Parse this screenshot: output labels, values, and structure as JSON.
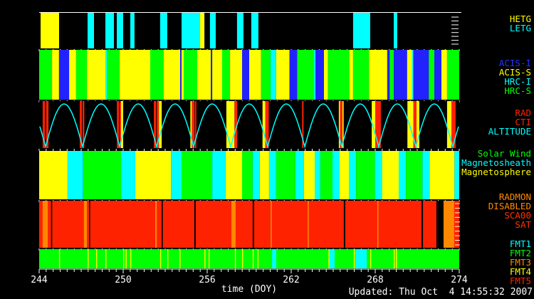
{
  "palette": {
    "yellow": "#ffff00",
    "cyan": "#00ffff",
    "green": "#00ff00",
    "blue": "#2222ff",
    "red": "#ff2200",
    "orange": "#ff8800",
    "black": "#000000",
    "white": "#ffffff"
  },
  "axis": {
    "xlabel": "time (DOY)",
    "x_min": 244,
    "x_max": 274,
    "major_ticks": [
      244,
      250,
      256,
      262,
      268,
      274
    ],
    "minor_step": 0.5
  },
  "footer": {
    "updated": "Updated: Thu Oct  4 14:55:32 2007"
  },
  "chart_data": {
    "type": "timeline-bands",
    "x_range": [
      244,
      274
    ],
    "x_unit": "DOY",
    "bands": [
      {
        "id": "gratings",
        "background": "black",
        "labels": [
          {
            "text": "HETG",
            "color": "#ffff00"
          },
          {
            "text": "LETG",
            "color": "#00ffff"
          }
        ],
        "segments": [
          [
            244.1,
            245.42,
            "yellow"
          ],
          [
            247.46,
            247.92,
            "cyan"
          ],
          [
            248.73,
            249.34,
            "cyan"
          ],
          [
            249.54,
            250.0,
            "cyan"
          ],
          [
            250.51,
            250.81,
            "cyan"
          ],
          [
            252.64,
            253.15,
            "cyan"
          ],
          [
            254.17,
            255.49,
            "cyan"
          ],
          [
            255.49,
            255.8,
            "yellow"
          ],
          [
            256.2,
            256.61,
            "cyan"
          ],
          [
            258.13,
            258.59,
            "cyan"
          ],
          [
            259.15,
            259.66,
            "cyan"
          ],
          [
            266.42,
            267.64,
            "cyan"
          ],
          [
            269.32,
            269.57,
            "cyan"
          ]
        ]
      },
      {
        "id": "instruments",
        "background": "black",
        "labels": [
          {
            "text": "ACIS-I",
            "color": "#2233ff"
          },
          {
            "text": "ACIS-S",
            "color": "#ffff00"
          },
          {
            "text": "HRC-I",
            "color": "#00ffff"
          },
          {
            "text": "HRC-S",
            "color": "#00ff00"
          }
        ],
        "segments": [
          [
            244.0,
            244.92,
            "green"
          ],
          [
            244.92,
            245.42,
            "yellow"
          ],
          [
            245.42,
            246.14,
            "blue"
          ],
          [
            246.14,
            246.64,
            "yellow"
          ],
          [
            246.64,
            247.41,
            "green"
          ],
          [
            247.41,
            248.73,
            "yellow"
          ],
          [
            248.73,
            248.83,
            "cyan"
          ],
          [
            248.83,
            249.75,
            "green"
          ],
          [
            249.75,
            251.93,
            "yellow"
          ],
          [
            251.93,
            252.9,
            "green"
          ],
          [
            252.9,
            254.07,
            "yellow"
          ],
          [
            254.07,
            254.17,
            "blue"
          ],
          [
            254.17,
            254.32,
            "yellow"
          ],
          [
            254.32,
            255.29,
            "green"
          ],
          [
            255.29,
            256.26,
            "yellow"
          ],
          [
            256.26,
            256.36,
            "blue"
          ],
          [
            256.36,
            257.07,
            "yellow"
          ],
          [
            257.07,
            257.63,
            "green"
          ],
          [
            257.63,
            258.49,
            "yellow"
          ],
          [
            258.49,
            259.0,
            "blue"
          ],
          [
            259.0,
            259.85,
            "yellow"
          ],
          [
            259.85,
            260.53,
            "green"
          ],
          [
            260.53,
            260.92,
            "cyan"
          ],
          [
            260.92,
            261.88,
            "yellow"
          ],
          [
            261.88,
            262.42,
            "blue"
          ],
          [
            262.42,
            263.63,
            "green"
          ],
          [
            263.63,
            263.73,
            "cyan"
          ],
          [
            263.73,
            264.34,
            "blue"
          ],
          [
            264.34,
            264.63,
            "yellow"
          ],
          [
            264.63,
            266.15,
            "green"
          ],
          [
            266.15,
            266.42,
            "yellow"
          ],
          [
            266.42,
            267.56,
            "green"
          ],
          [
            267.56,
            268.86,
            "yellow"
          ],
          [
            268.86,
            269.03,
            "blue"
          ],
          [
            269.03,
            269.33,
            "green"
          ],
          [
            269.33,
            270.28,
            "blue"
          ],
          [
            270.28,
            270.64,
            "yellow"
          ],
          [
            270.64,
            270.72,
            "cyan"
          ],
          [
            270.72,
            271.83,
            "blue"
          ],
          [
            271.83,
            272.22,
            "green"
          ],
          [
            272.22,
            272.73,
            "blue"
          ],
          [
            272.73,
            273.13,
            "yellow"
          ],
          [
            273.13,
            274.0,
            "green"
          ]
        ]
      },
      {
        "id": "orbit",
        "background": "black",
        "labels": [
          {
            "text": "RAD",
            "color": "#ff2200"
          },
          {
            "text": "CTI",
            "color": "#ff2200"
          },
          {
            "text": "ALTITUDE",
            "color": "#00ffff"
          }
        ],
        "curve": {
          "name": "altitude",
          "color": "#00ffff",
          "perigees": [
            244.46,
            247.1,
            249.75,
            252.39,
            255.03,
            257.68,
            260.32,
            262.97,
            265.61,
            268.25,
            270.9,
            273.54
          ]
        },
        "segments": [
          [
            244.25,
            244.42,
            "red"
          ],
          [
            244.5,
            244.67,
            "red"
          ],
          [
            246.9,
            247.05,
            "red"
          ],
          [
            247.1,
            247.22,
            "red"
          ],
          [
            249.55,
            249.7,
            "red"
          ],
          [
            249.75,
            249.85,
            "red"
          ],
          [
            249.85,
            250.0,
            "yellow"
          ],
          [
            252.19,
            252.35,
            "red"
          ],
          [
            252.4,
            252.55,
            "red"
          ],
          [
            252.55,
            252.75,
            "yellow"
          ],
          [
            254.8,
            254.9,
            "yellow"
          ],
          [
            254.9,
            255.1,
            "red"
          ],
          [
            255.14,
            255.22,
            "red"
          ],
          [
            257.37,
            257.95,
            "yellow"
          ],
          [
            257.95,
            258.15,
            "red"
          ],
          [
            259.95,
            260.15,
            "yellow"
          ],
          [
            260.15,
            260.4,
            "red"
          ],
          [
            262.78,
            262.88,
            "red"
          ],
          [
            265.4,
            265.48,
            "yellow"
          ],
          [
            265.48,
            265.66,
            "red"
          ],
          [
            265.66,
            265.74,
            "yellow"
          ],
          [
            267.75,
            268.0,
            "yellow"
          ],
          [
            268.0,
            268.4,
            "red"
          ],
          [
            270.3,
            270.72,
            "yellow"
          ],
          [
            270.72,
            270.95,
            "red"
          ],
          [
            270.95,
            271.15,
            "yellow"
          ],
          [
            273.13,
            273.44,
            "yellow"
          ],
          [
            273.44,
            273.74,
            "red"
          ]
        ]
      },
      {
        "id": "space-weather",
        "background": "black",
        "labels": [
          {
            "text": "Solar Wind",
            "color": "#00ff00"
          },
          {
            "text": "Magnetosheath",
            "color": "#00ffff"
          },
          {
            "text": "Magnetosphere",
            "color": "#ffff00"
          }
        ],
        "segments": [
          [
            244.0,
            246.03,
            "yellow"
          ],
          [
            246.03,
            247.14,
            "cyan"
          ],
          [
            247.14,
            249.85,
            "green"
          ],
          [
            249.85,
            250.86,
            "cyan"
          ],
          [
            250.86,
            253.41,
            "yellow"
          ],
          [
            253.41,
            254.17,
            "cyan"
          ],
          [
            254.17,
            256.36,
            "green"
          ],
          [
            256.36,
            257.31,
            "cyan"
          ],
          [
            257.31,
            258.49,
            "yellow"
          ],
          [
            258.49,
            259.25,
            "green"
          ],
          [
            259.25,
            259.76,
            "cyan"
          ],
          [
            259.76,
            260.42,
            "yellow"
          ],
          [
            260.42,
            260.93,
            "cyan"
          ],
          [
            260.93,
            262.3,
            "green"
          ],
          [
            262.3,
            262.91,
            "cyan"
          ],
          [
            262.91,
            263.68,
            "yellow"
          ],
          [
            263.68,
            264.08,
            "cyan"
          ],
          [
            264.08,
            264.95,
            "green"
          ],
          [
            264.95,
            265.46,
            "cyan"
          ],
          [
            265.46,
            266.12,
            "yellow"
          ],
          [
            266.12,
            266.63,
            "cyan"
          ],
          [
            266.63,
            267.98,
            "green"
          ],
          [
            267.98,
            268.49,
            "cyan"
          ],
          [
            268.49,
            269.68,
            "yellow"
          ],
          [
            269.68,
            270.19,
            "cyan"
          ],
          [
            270.19,
            271.37,
            "green"
          ],
          [
            271.37,
            271.88,
            "cyan"
          ],
          [
            271.88,
            273.66,
            "yellow"
          ],
          [
            273.66,
            274.0,
            "cyan"
          ]
        ]
      },
      {
        "id": "radmon",
        "background": "red",
        "labels": [
          {
            "text": "RADMON",
            "color": "#ff8800"
          },
          {
            "text": "DISABLED",
            "color": "#ff8800"
          },
          {
            "text": "SCA00",
            "color": "#ff3300"
          },
          {
            "text": "SAT",
            "color": "#ff3300"
          }
        ],
        "segments": [
          [
            244.25,
            244.61,
            "orange"
          ],
          [
            244.85,
            244.93,
            "black"
          ],
          [
            247.2,
            247.41,
            "orange"
          ],
          [
            247.56,
            247.64,
            "black"
          ],
          [
            252.29,
            252.4,
            "orange"
          ],
          [
            252.75,
            252.83,
            "black"
          ],
          [
            255.08,
            255.18,
            "black"
          ],
          [
            257.73,
            258.03,
            "orange"
          ],
          [
            259.25,
            259.35,
            "black"
          ],
          [
            260.53,
            260.61,
            "orange"
          ],
          [
            263.17,
            263.25,
            "orange"
          ],
          [
            265.76,
            265.86,
            "black"
          ],
          [
            268.15,
            268.23,
            "orange"
          ],
          [
            271.31,
            271.41,
            "black"
          ],
          [
            272.37,
            272.88,
            "black"
          ],
          [
            272.88,
            273.64,
            "orange"
          ]
        ]
      },
      {
        "id": "telemetry-format",
        "background": "green",
        "labels": [
          {
            "text": "FMT1",
            "color": "#00ffff"
          },
          {
            "text": "FMT2",
            "color": "#00ff00"
          },
          {
            "text": "FMT3",
            "color": "#ff8800"
          },
          {
            "text": "FMT4",
            "color": "#ffff00"
          },
          {
            "text": "FMT5",
            "color": "#ff2200"
          }
        ],
        "segments": [
          [
            260.63,
            260.93,
            "cyan"
          ],
          [
            264.68,
            265.1,
            "cyan"
          ],
          [
            266.58,
            267.39,
            "cyan"
          ]
        ],
        "lines": {
          "color": "yellow",
          "width_days": 0.07,
          "at": [
            245.42,
            247.46,
            248.07,
            248.73,
            250.0,
            250.18,
            250.51,
            252.64,
            253.15,
            254.02,
            255.8,
            256.1,
            257.98,
            258.49,
            259.25,
            259.59,
            264.66,
            266.47,
            267.64,
            269.32,
            269.48
          ]
        }
      }
    ]
  }
}
